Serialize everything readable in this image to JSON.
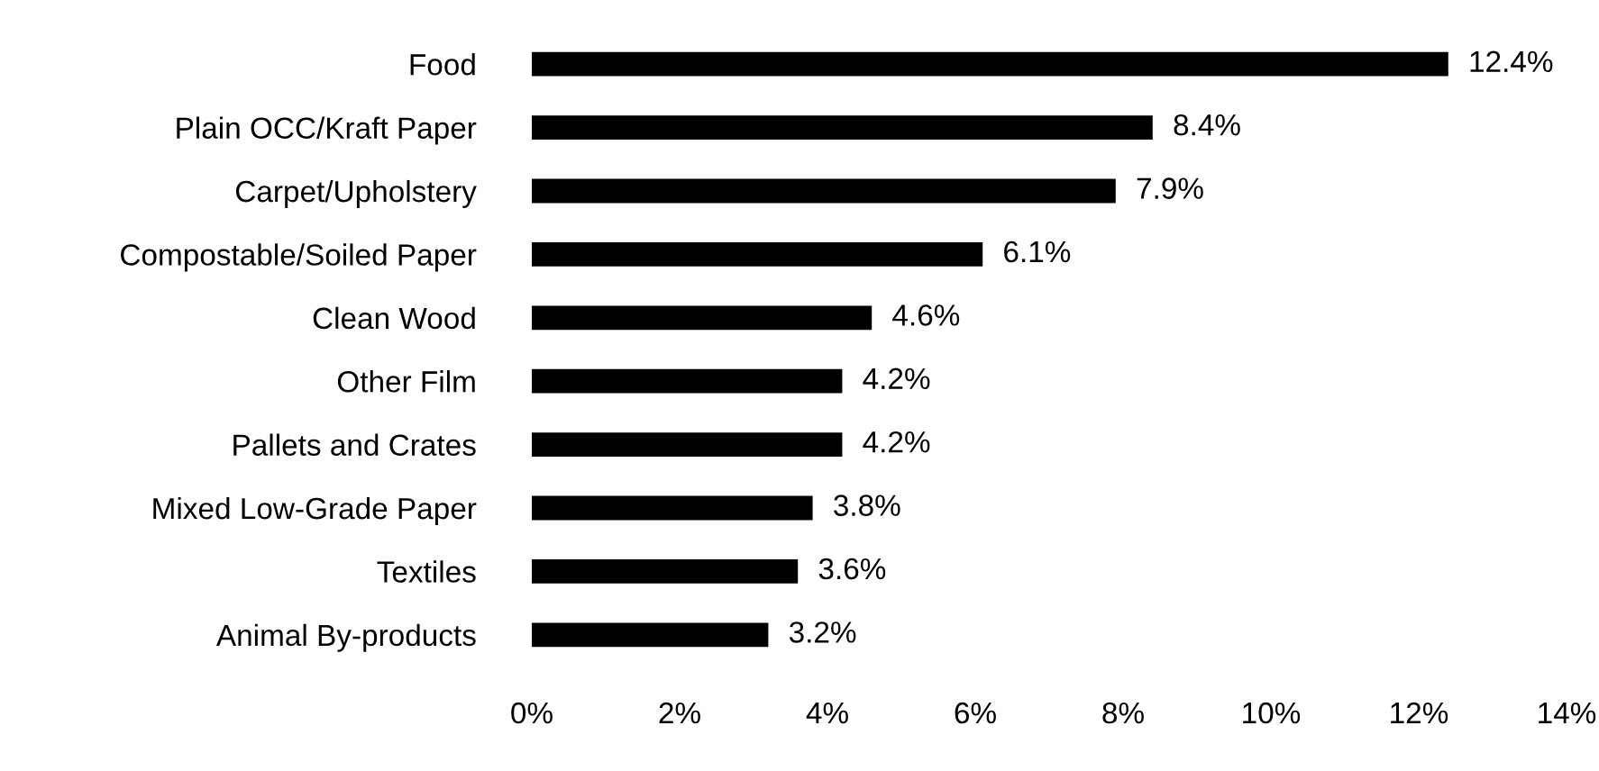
{
  "chart_data": {
    "type": "bar",
    "orientation": "horizontal",
    "categories": [
      "Food",
      "Plain OCC/Kraft Paper",
      "Carpet/Upholstery",
      "Compostable/Soiled Paper",
      "Clean Wood",
      "Other Film",
      "Pallets and Crates",
      "Mixed Low-Grade Paper",
      "Textiles",
      "Animal By-products"
    ],
    "values": [
      12.4,
      8.4,
      7.9,
      6.1,
      4.6,
      4.2,
      4.2,
      3.8,
      3.6,
      3.2
    ],
    "value_labels": [
      "12.4%",
      "8.4%",
      "7.9%",
      "6.1%",
      "4.6%",
      "4.2%",
      "4.2%",
      "3.8%",
      "3.6%",
      "3.2%"
    ],
    "color": "#000000",
    "xlim": [
      0,
      14
    ],
    "xticks": [
      {
        "value": 0,
        "label": "0%"
      },
      {
        "value": 2,
        "label": "2%"
      },
      {
        "value": 4,
        "label": "4%"
      },
      {
        "value": 6,
        "label": "6%"
      },
      {
        "value": 8,
        "label": "8%"
      },
      {
        "value": 10,
        "label": "10%"
      },
      {
        "value": 12,
        "label": "12%"
      },
      {
        "value": 14,
        "label": "14%"
      }
    ],
    "grid": false,
    "legend": false
  }
}
